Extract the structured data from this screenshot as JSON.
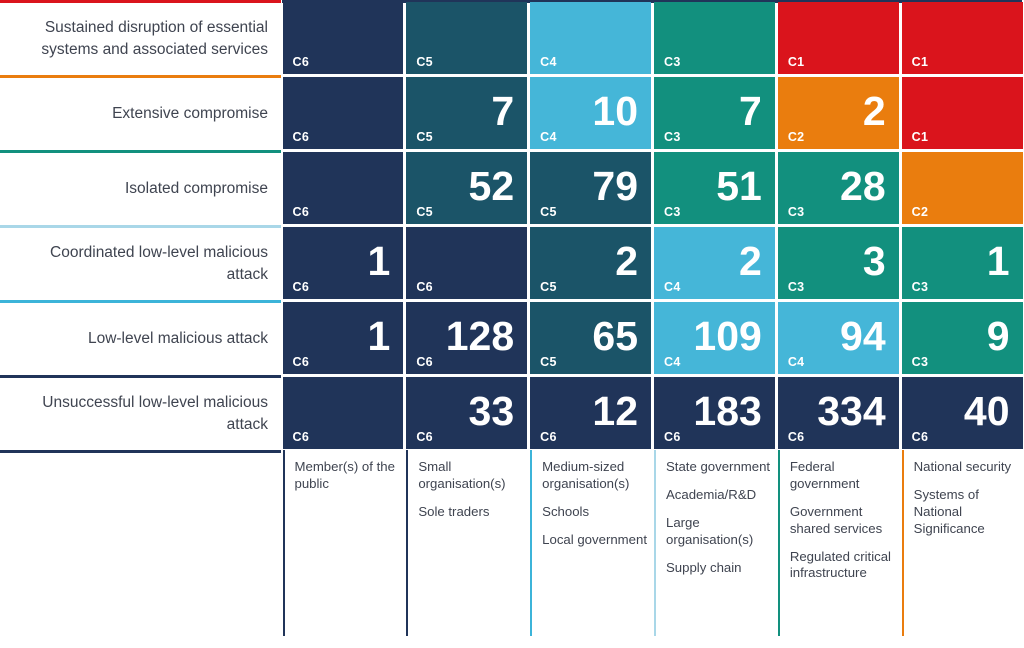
{
  "chart_data": {
    "type": "heatmap",
    "rows": [
      {
        "label": "Sustained disruption of essential systems and associated services",
        "separator_color": "#da141c"
      },
      {
        "label": "Extensive compromise",
        "separator_color": "#ea7d0e"
      },
      {
        "label": "Isolated compromise",
        "separator_color": "#12907e"
      },
      {
        "label": "Coordinated low-level malicious attack",
        "separator_color": "#a9d7e8"
      },
      {
        "label": "Low-level malicious attack",
        "separator_color": "#3cb4d9"
      },
      {
        "label": "Unsuccessful low-level malicious attack",
        "separator_color": "#203459"
      }
    ],
    "bottom_separator_color": "#203459",
    "matrix_top_line_color": "#203459",
    "columns": [
      {
        "lines": [
          "Member(s) of the public"
        ],
        "border_color": "#203459"
      },
      {
        "lines": [
          "Small organisation(s)",
          "Sole traders"
        ],
        "border_color": "#203459"
      },
      {
        "lines": [
          "Medium-sized organisation(s)",
          "Schools",
          "Local government"
        ],
        "border_color": "#3cb4d9"
      },
      {
        "lines": [
          "State government",
          "Academia/R&D",
          "Large organisation(s)",
          "Supply chain"
        ],
        "border_color": "#a9d7e8"
      },
      {
        "lines": [
          "Federal government",
          "Government shared services",
          "Regulated critical infrastructure"
        ],
        "border_color": "#12907e"
      },
      {
        "lines": [
          "National security",
          "Systems of National Significance"
        ],
        "border_color": "#ea7d0e"
      }
    ],
    "severity_colors": {
      "C1": "#da141c",
      "C2": "#ea7d0e",
      "C3": "#12907e",
      "C4": "#45b6d8",
      "C5": "#1b5468",
      "C6": "#203459"
    },
    "cells": [
      [
        {
          "category": "C6",
          "value": null
        },
        {
          "category": "C5",
          "value": null
        },
        {
          "category": "C4",
          "value": null
        },
        {
          "category": "C3",
          "value": null
        },
        {
          "category": "C1",
          "value": null
        },
        {
          "category": "C1",
          "value": null
        }
      ],
      [
        {
          "category": "C6",
          "value": null
        },
        {
          "category": "C5",
          "value": 7
        },
        {
          "category": "C4",
          "value": 10
        },
        {
          "category": "C3",
          "value": 7
        },
        {
          "category": "C2",
          "value": 2
        },
        {
          "category": "C1",
          "value": null
        }
      ],
      [
        {
          "category": "C6",
          "value": null
        },
        {
          "category": "C5",
          "value": 52
        },
        {
          "category": "C5",
          "value": 79
        },
        {
          "category": "C3",
          "value": 51
        },
        {
          "category": "C3",
          "value": 28
        },
        {
          "category": "C2",
          "value": null
        }
      ],
      [
        {
          "category": "C6",
          "value": 1
        },
        {
          "category": "C6",
          "value": null
        },
        {
          "category": "C5",
          "value": 2
        },
        {
          "category": "C4",
          "value": 2
        },
        {
          "category": "C3",
          "value": 3
        },
        {
          "category": "C3",
          "value": 1
        }
      ],
      [
        {
          "category": "C6",
          "value": 1
        },
        {
          "category": "C6",
          "value": 128
        },
        {
          "category": "C5",
          "value": 65
        },
        {
          "category": "C4",
          "value": 109
        },
        {
          "category": "C4",
          "value": 94
        },
        {
          "category": "C3",
          "value": 9
        }
      ],
      [
        {
          "category": "C6",
          "value": null
        },
        {
          "category": "C6",
          "value": 33
        },
        {
          "category": "C6",
          "value": 12
        },
        {
          "category": "C6",
          "value": 183
        },
        {
          "category": "C6",
          "value": 334
        },
        {
          "category": "C6",
          "value": 40
        }
      ]
    ],
    "label_text_color": "#3f4450",
    "cell_text_color": "#ffffff"
  }
}
